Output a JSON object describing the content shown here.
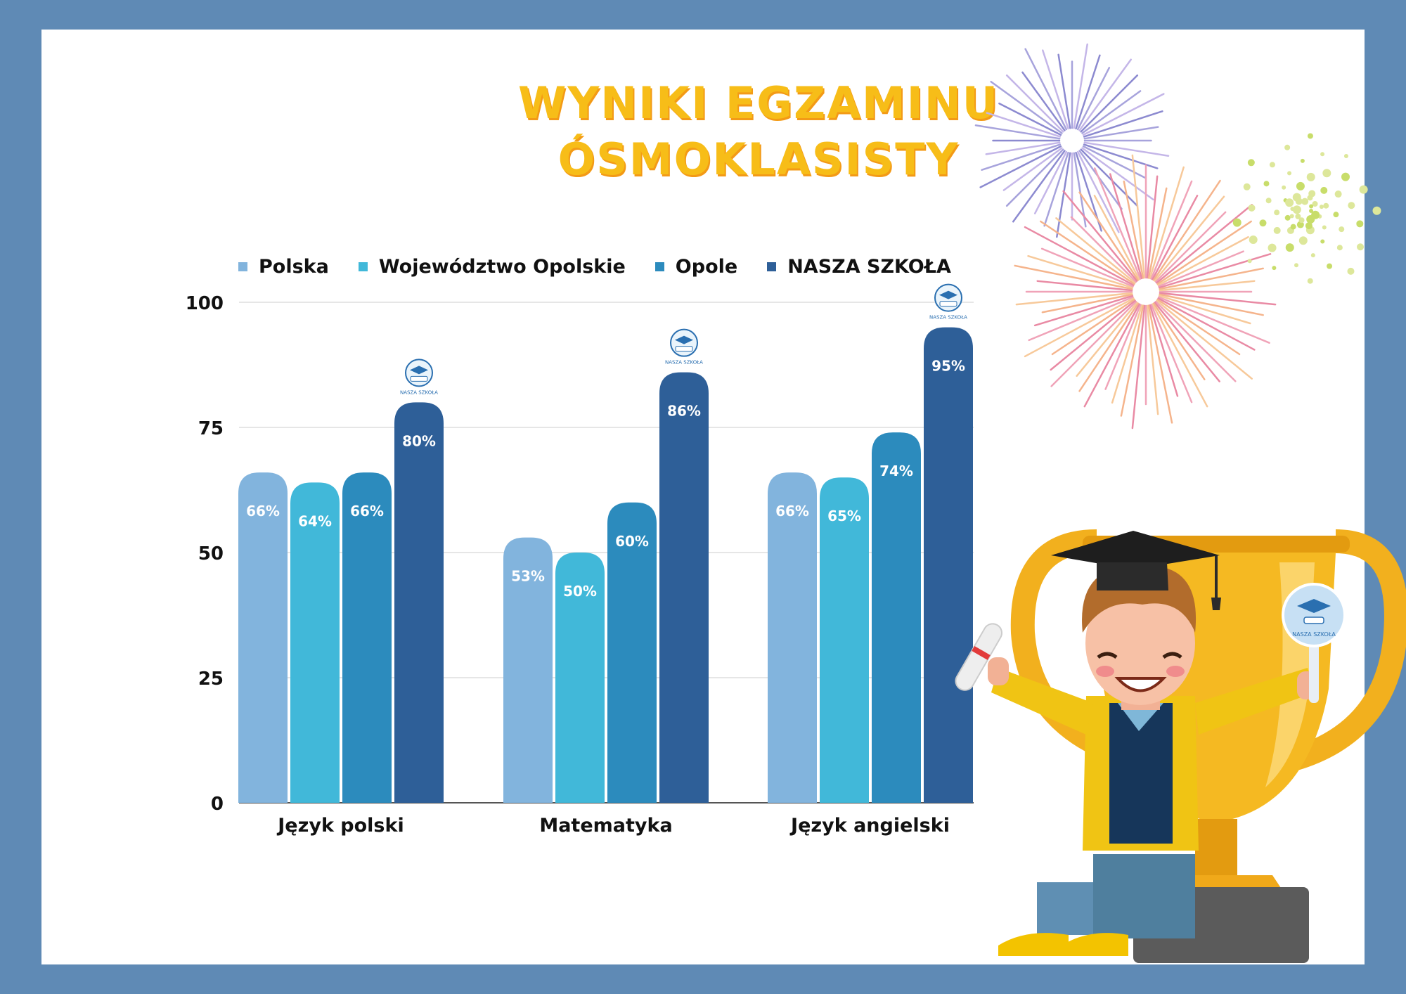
{
  "title": {
    "line1": "WYNIKI EGZAMINU",
    "line2": "ÓSMOKLASISTY"
  },
  "badge_text": "NASZA SZKOŁA",
  "chart_data": {
    "type": "bar",
    "categories": [
      "Język polski",
      "Matematyka",
      "Język angielski"
    ],
    "series": [
      {
        "name": "Polska",
        "values": [
          66,
          53,
          66
        ],
        "color": "#82b4dd"
      },
      {
        "name": "Województwo Opolskie",
        "values": [
          64,
          50,
          65
        ],
        "color": "#41b8d9"
      },
      {
        "name": "Opole",
        "values": [
          66,
          60,
          74
        ],
        "color": "#2c8bbd"
      },
      {
        "name": "NASZA SZKOŁA",
        "values": [
          80,
          86,
          95
        ],
        "color": "#2e5f98"
      }
    ],
    "value_suffix": "%",
    "ylim": [
      0,
      100
    ],
    "yticks": [
      0,
      25,
      50,
      75,
      100
    ],
    "grid": true,
    "legend": "top"
  }
}
